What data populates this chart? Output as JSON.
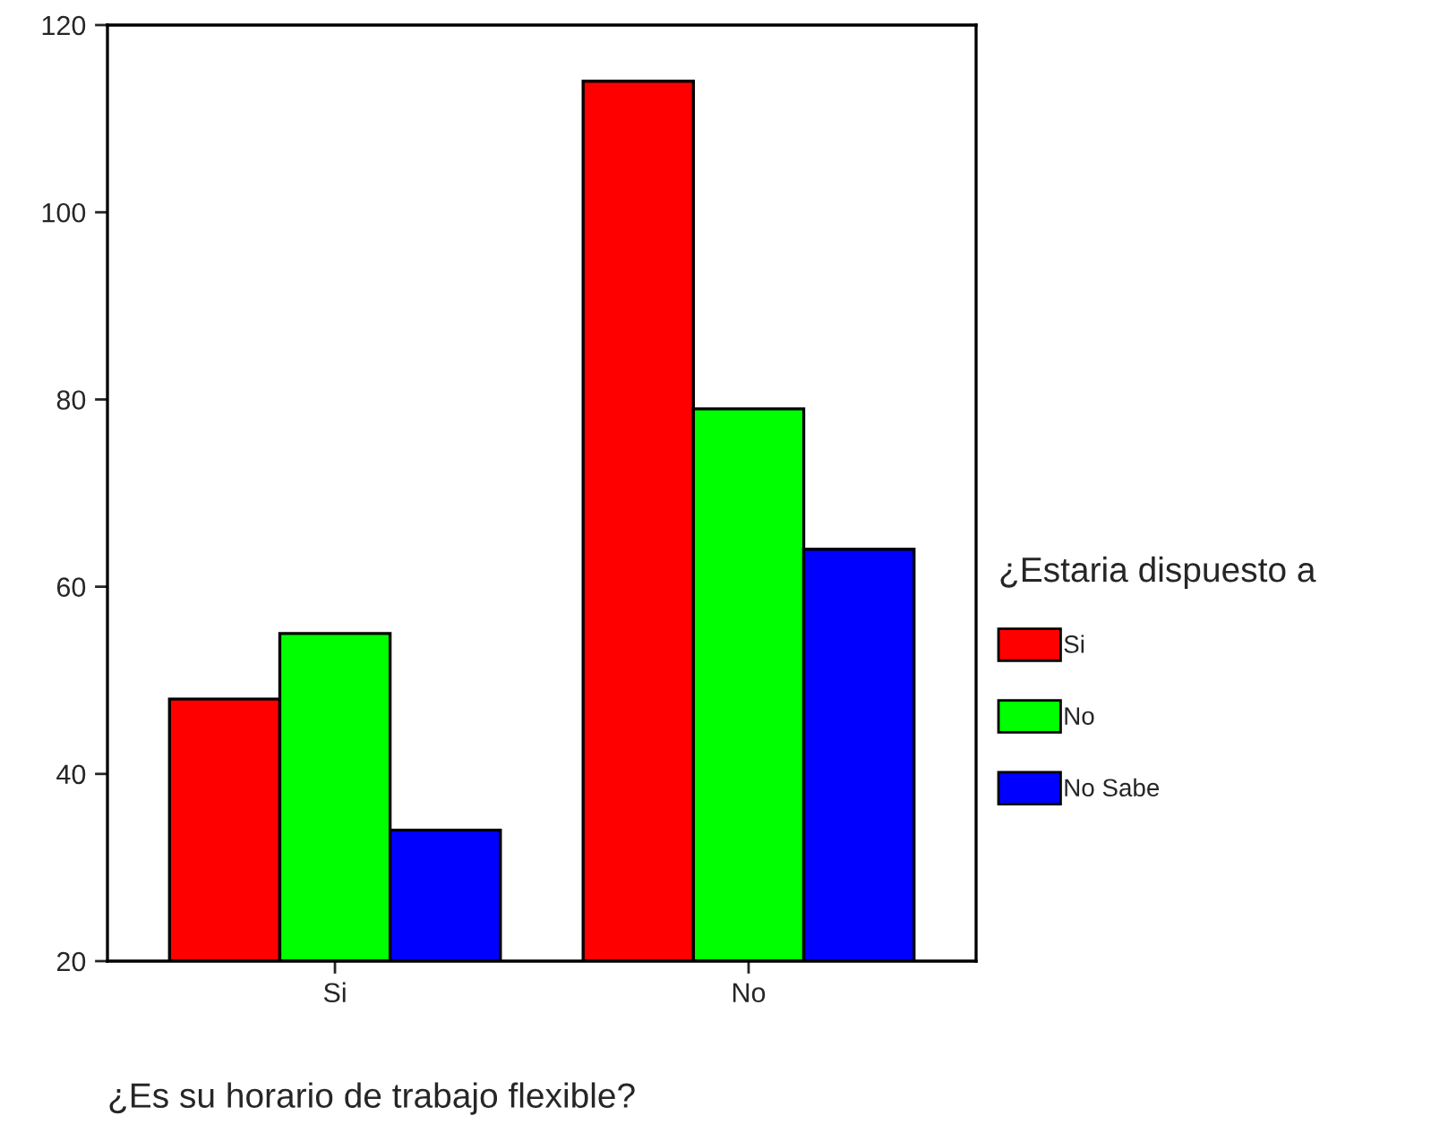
{
  "chart_data": {
    "type": "bar",
    "xlabel": "¿Es su horario de trabajo flexible?",
    "legend_title": "¿Estaria dispuesto a",
    "categories": [
      "Si",
      "No"
    ],
    "series": [
      {
        "name": "Si",
        "color": "#ff0000",
        "values": [
          48,
          114
        ]
      },
      {
        "name": "No",
        "color": "#00ff00",
        "values": [
          55,
          79
        ]
      },
      {
        "name": "No Sabe",
        "color": "#0000ff",
        "values": [
          34,
          64
        ]
      }
    ],
    "ylim": [
      20,
      120
    ],
    "yticks": [
      20,
      40,
      60,
      80,
      100,
      120
    ],
    "legend": "right",
    "grid": false
  }
}
